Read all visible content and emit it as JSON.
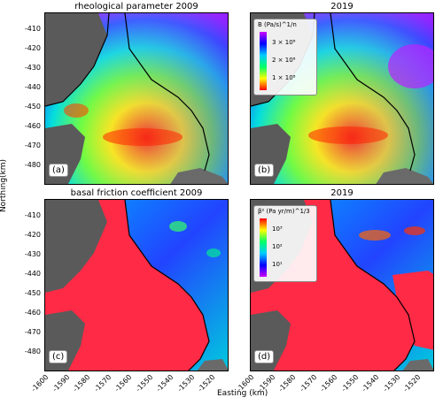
{
  "figure": {
    "panels": [
      {
        "id": "a",
        "title": "rheological parameter 2009",
        "label": "(a)"
      },
      {
        "id": "b",
        "title": "2019",
        "label": "(b)"
      },
      {
        "id": "c",
        "title": "basal friction coefficient 2009",
        "label": "(c)"
      },
      {
        "id": "d",
        "title": "2019",
        "label": "(d)"
      }
    ],
    "y_ticks": [
      "-410",
      "-420",
      "-430",
      "-440",
      "-450",
      "-460",
      "-470",
      "-480"
    ],
    "x_ticks": [
      "-1600",
      "-1590",
      "-1580",
      "-1570",
      "-1560",
      "-1550",
      "-1540",
      "-1530",
      "-1520"
    ],
    "y_axis_label": "Northing(km)",
    "x_axis_label": "Easting (km)",
    "colorbar_top": {
      "title": "B (Pa/s)^1/n",
      "ticks": [
        "3 × 10⁸",
        "2 × 10⁸",
        "1 × 10⁸"
      ]
    },
    "colorbar_bottom": {
      "title": "β² (Pa yr/m)^1/3",
      "ticks": [
        "10³",
        "10²",
        "10¹"
      ]
    },
    "colors": {
      "rheology": [
        "#ff0000",
        "#ffff00",
        "#00ff66",
        "#00ccff",
        "#0000ff",
        "#cc00ff"
      ],
      "friction_red": "#ff2a45",
      "friction_blue": "#1f5cff",
      "rock": "#5a5a5a"
    }
  }
}
